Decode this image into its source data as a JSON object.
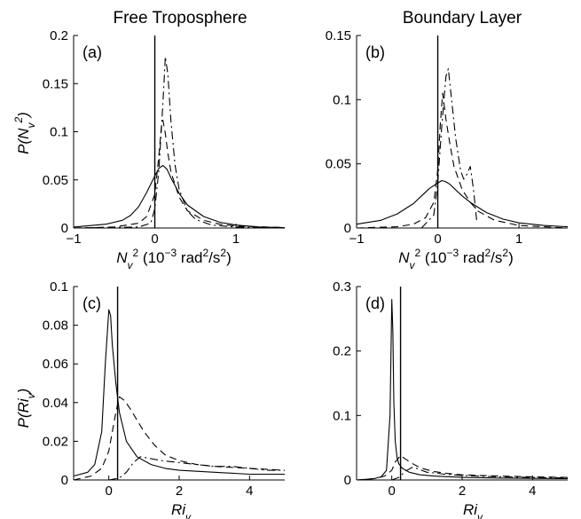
{
  "column_titles": [
    "Free Troposphere",
    "Boundary Layer"
  ],
  "chart_data": [
    {
      "type": "line",
      "panel_label": "(a)",
      "column": "Free Troposphere",
      "xlim": [
        -1,
        1.6
      ],
      "ylim": [
        0,
        0.2
      ],
      "xticks": [
        "−1",
        "0",
        "1"
      ],
      "yticks": [
        "0",
        "0.05",
        "0.1",
        "0.15",
        "0.2"
      ],
      "ylabel": "P(N_v^2)",
      "xlabel": "N_v^2 (10^-3 rad^2/s^2)",
      "vline": 0,
      "series": [
        {
          "style": "solid",
          "x": [
            -1,
            -0.6,
            -0.4,
            -0.3,
            -0.2,
            -0.1,
            0,
            0.05,
            0.1,
            0.15,
            0.2,
            0.3,
            0.4,
            0.6,
            0.8,
            1.0,
            1.3,
            1.6
          ],
          "y": [
            0.001,
            0.004,
            0.008,
            0.013,
            0.022,
            0.037,
            0.054,
            0.062,
            0.065,
            0.061,
            0.052,
            0.036,
            0.024,
            0.012,
            0.006,
            0.003,
            0.001,
            0.0005
          ]
        },
        {
          "style": "dashed",
          "x": [
            -1,
            -0.5,
            -0.2,
            -0.1,
            0,
            0.05,
            0.08,
            0.1,
            0.13,
            0.16,
            0.2,
            0.3,
            0.4,
            0.6,
            0.8,
            1.0,
            1.6
          ],
          "y": [
            0,
            0.001,
            0.005,
            0.012,
            0.035,
            0.075,
            0.105,
            0.112,
            0.098,
            0.078,
            0.058,
            0.032,
            0.018,
            0.008,
            0.004,
            0.002,
            0.0005
          ]
        },
        {
          "style": "dashdot",
          "x": [
            -1,
            -0.2,
            -0.05,
            0,
            0.05,
            0.1,
            0.13,
            0.16,
            0.2,
            0.25,
            0.3,
            0.4,
            0.5,
            0.7,
            1.0,
            1.6
          ],
          "y": [
            0,
            0.001,
            0.005,
            0.02,
            0.06,
            0.13,
            0.178,
            0.16,
            0.11,
            0.065,
            0.04,
            0.018,
            0.009,
            0.003,
            0.001,
            0
          ]
        }
      ]
    },
    {
      "type": "line",
      "panel_label": "(b)",
      "column": "Boundary Layer",
      "xlim": [
        -1,
        1.6
      ],
      "ylim": [
        0,
        0.15
      ],
      "xticks": [
        "−1",
        "0",
        "1"
      ],
      "yticks": [
        "0",
        "0.05",
        "0.1",
        "0.15"
      ],
      "ylabel": "",
      "xlabel": "N_v^2 (10^-3 rad^2/s^2)",
      "vline": 0,
      "series": [
        {
          "style": "solid",
          "x": [
            -1,
            -0.7,
            -0.5,
            -0.3,
            -0.2,
            -0.1,
            0,
            0.05,
            0.1,
            0.15,
            0.2,
            0.3,
            0.4,
            0.5,
            0.6,
            0.8,
            1.0,
            1.3,
            1.6
          ],
          "y": [
            0.003,
            0.006,
            0.011,
            0.019,
            0.025,
            0.031,
            0.035,
            0.037,
            0.036,
            0.034,
            0.031,
            0.025,
            0.02,
            0.016,
            0.012,
            0.007,
            0.004,
            0.002,
            0.001
          ]
        },
        {
          "style": "dashed",
          "x": [
            -1,
            -0.5,
            -0.3,
            -0.15,
            -0.05,
            0,
            0.03,
            0.06,
            0.1,
            0.15,
            0.2,
            0.3,
            0.4,
            0.5,
            0.7,
            1.0,
            1.6
          ],
          "y": [
            0,
            0.001,
            0.003,
            0.008,
            0.02,
            0.045,
            0.08,
            0.105,
            0.085,
            0.065,
            0.048,
            0.03,
            0.02,
            0.013,
            0.006,
            0.002,
            0
          ]
        },
        {
          "style": "dashdot",
          "x": [
            -0.2,
            -0.05,
            0,
            0.05,
            0.1,
            0.13,
            0.17,
            0.22,
            0.28,
            0.32,
            0.36,
            0.4,
            0.44,
            0.48
          ],
          "y": [
            0,
            0.01,
            0.035,
            0.08,
            0.118,
            0.124,
            0.1,
            0.07,
            0.045,
            0.038,
            0.042,
            0.048,
            0.03,
            0.005
          ]
        }
      ]
    },
    {
      "type": "line",
      "panel_label": "(c)",
      "column": "Free Troposphere",
      "xlim": [
        -1,
        5
      ],
      "ylim": [
        0,
        0.1
      ],
      "xticks": [
        "0",
        "2",
        "4"
      ],
      "yticks": [
        "0",
        "0.02",
        "0.04",
        "0.06",
        "0.08",
        "0.1"
      ],
      "ylabel": "P(Ri_v)",
      "xlabel": "Ri_v",
      "vline": 0.25,
      "series": [
        {
          "style": "solid",
          "x": [
            -1,
            -0.6,
            -0.4,
            -0.2,
            -0.1,
            0,
            0.05,
            0.1,
            0.2,
            0.3,
            0.5,
            0.8,
            1.2,
            1.6,
            2,
            3,
            4,
            5
          ],
          "y": [
            0.002,
            0.004,
            0.008,
            0.025,
            0.06,
            0.088,
            0.085,
            0.07,
            0.05,
            0.035,
            0.02,
            0.012,
            0.008,
            0.006,
            0.005,
            0.004,
            0.003,
            0.003
          ]
        },
        {
          "style": "dashed",
          "x": [
            -1,
            -0.5,
            -0.2,
            0,
            0.2,
            0.3,
            0.45,
            0.6,
            0.8,
            1.0,
            1.3,
            1.6,
            2,
            2.5,
            3,
            4,
            5
          ],
          "y": [
            0,
            0.002,
            0.006,
            0.015,
            0.035,
            0.043,
            0.041,
            0.037,
            0.031,
            0.025,
            0.018,
            0.013,
            0.01,
            0.008,
            0.007,
            0.006,
            0.005
          ]
        },
        {
          "style": "dashdot",
          "x": [
            0,
            0.3,
            0.5,
            0.7,
            0.9,
            1.2,
            1.5,
            2,
            2.5,
            3,
            3.5,
            4,
            4.5,
            5
          ],
          "y": [
            0,
            0.001,
            0.004,
            0.009,
            0.012,
            0.011,
            0.01,
            0.009,
            0.008,
            0.007,
            0.007,
            0.006,
            0.005,
            0.005
          ]
        }
      ]
    },
    {
      "type": "line",
      "panel_label": "(d)",
      "column": "Boundary Layer",
      "xlim": [
        -1,
        5
      ],
      "ylim": [
        0,
        0.3
      ],
      "xticks": [
        "0",
        "2",
        "4"
      ],
      "yticks": [
        "0",
        "0.1",
        "0.2",
        "0.3"
      ],
      "ylabel": "",
      "xlabel": "Ri_v",
      "vline": 0.25,
      "series": [
        {
          "style": "solid",
          "x": [
            -1,
            -0.5,
            -0.3,
            -0.15,
            -0.05,
            0,
            0.03,
            0.06,
            0.1,
            0.15,
            0.2,
            0.3,
            0.5,
            0.8,
            1.2,
            2,
            3,
            5
          ],
          "y": [
            0,
            0.002,
            0.005,
            0.015,
            0.1,
            0.28,
            0.23,
            0.12,
            0.06,
            0.035,
            0.025,
            0.018,
            0.012,
            0.008,
            0.006,
            0.004,
            0.003,
            0.002
          ]
        },
        {
          "style": "dashed",
          "x": [
            -1,
            -0.5,
            -0.2,
            0,
            0.1,
            0.25,
            0.4,
            0.6,
            0.8,
            1.2,
            1.6,
            2,
            3,
            4,
            5
          ],
          "y": [
            0,
            0.002,
            0.006,
            0.015,
            0.028,
            0.038,
            0.032,
            0.025,
            0.019,
            0.013,
            0.01,
            0.008,
            0.006,
            0.005,
            0.004
          ]
        },
        {
          "style": "dashdot",
          "x": [
            0,
            0.2,
            0.4,
            0.6,
            0.8,
            1.0,
            1.2,
            1.5,
            2,
            3,
            4,
            5
          ],
          "y": [
            0,
            0.004,
            0.014,
            0.02,
            0.016,
            0.012,
            0.011,
            0.009,
            0.007,
            0.005,
            0.004,
            0.003
          ]
        }
      ]
    }
  ]
}
